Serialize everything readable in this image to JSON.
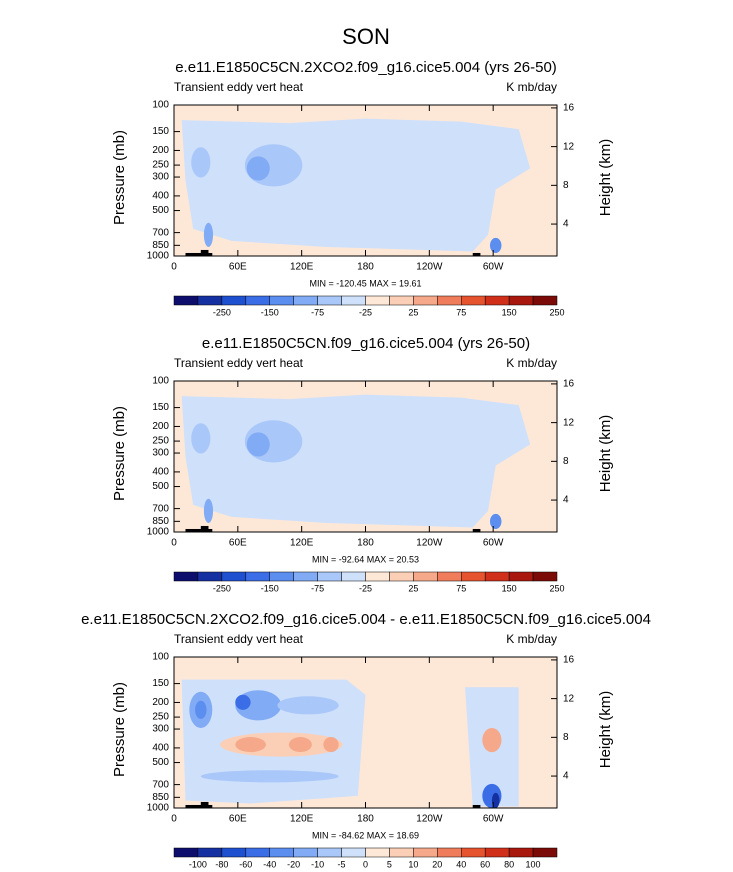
{
  "title": "SON",
  "panels": [
    {
      "type": "contour",
      "title": "e.e11.E1850C5CN.2XCO2.f09_g16.cice5.004 (yrs 26-50)",
      "left_label": "Transient eddy vert heat",
      "right_label": "K mb/day",
      "y_label": "Pressure (mb)",
      "y2_label": "Height (km)",
      "log_y": true,
      "ylim": [
        1000,
        100
      ],
      "yticks": [
        100,
        150,
        200,
        250,
        300,
        400,
        500,
        700,
        850,
        1000
      ],
      "y2lim": [
        0.7,
        16.3
      ],
      "y2ticks": [
        4,
        8,
        12,
        16
      ],
      "xlim": [
        0,
        360
      ],
      "xticks": [
        0,
        {
          "value": 60,
          "label": "60E"
        },
        {
          "value": 120,
          "label": "120E"
        },
        180,
        {
          "value": 240,
          "label": "120W"
        },
        {
          "value": 300,
          "label": "60W"
        }
      ],
      "stats": "MIN = -120.45  MAX = 19.61",
      "colorbar": {
        "colors": [
          "#0d0d6e",
          "#1530a0",
          "#1f50d0",
          "#3a6de6",
          "#5c8ef0",
          "#82abf5",
          "#a9c7f8",
          "#cfe0fb",
          "#fde8d8",
          "#fbcfb6",
          "#f6a98a",
          "#ef7d5c",
          "#e5532f",
          "#d0301a",
          "#a8180e",
          "#7a0b06"
        ],
        "labels": [
          -250,
          -150,
          -75,
          -25,
          25,
          75,
          150,
          250
        ],
        "label_every": 2
      }
    },
    {
      "type": "contour",
      "title": "e.e11.E1850C5CN.f09_g16.cice5.004 (yrs 26-50)",
      "left_label": "Transient eddy vert heat",
      "right_label": "K mb/day",
      "y_label": "Pressure (mb)",
      "y2_label": "Height (km)",
      "log_y": true,
      "ylim": [
        1000,
        100
      ],
      "yticks": [
        100,
        150,
        200,
        250,
        300,
        400,
        500,
        700,
        850,
        1000
      ],
      "y2lim": [
        0.7,
        16.3
      ],
      "y2ticks": [
        4,
        8,
        12,
        16
      ],
      "xlim": [
        0,
        360
      ],
      "xticks": [
        0,
        {
          "value": 60,
          "label": "60E"
        },
        {
          "value": 120,
          "label": "120E"
        },
        180,
        {
          "value": 240,
          "label": "120W"
        },
        {
          "value": 300,
          "label": "60W"
        }
      ],
      "stats": "MIN = -92.64  MAX = 20.53",
      "colorbar": {
        "colors": [
          "#0d0d6e",
          "#1530a0",
          "#1f50d0",
          "#3a6de6",
          "#5c8ef0",
          "#82abf5",
          "#a9c7f8",
          "#cfe0fb",
          "#fde8d8",
          "#fbcfb6",
          "#f6a98a",
          "#ef7d5c",
          "#e5532f",
          "#d0301a",
          "#a8180e",
          "#7a0b06"
        ],
        "labels": [
          -250,
          -150,
          -75,
          -25,
          25,
          75,
          150,
          250
        ],
        "label_every": 2
      }
    },
    {
      "type": "contour",
      "title": "e.e11.E1850C5CN.2XCO2.f09_g16.cice5.004 - e.e11.E1850C5CN.f09_g16.cice5.004",
      "left_label": "Transient eddy vert heat",
      "right_label": "K mb/day",
      "y_label": "Pressure (mb)",
      "y2_label": "Height (km)",
      "log_y": true,
      "ylim": [
        1000,
        100
      ],
      "yticks": [
        100,
        150,
        200,
        250,
        300,
        400,
        500,
        700,
        850,
        1000
      ],
      "y2lim": [
        0.7,
        16.3
      ],
      "y2ticks": [
        4,
        8,
        12,
        16
      ],
      "xlim": [
        0,
        360
      ],
      "xticks": [
        0,
        {
          "value": 60,
          "label": "60E"
        },
        {
          "value": 120,
          "label": "120E"
        },
        180,
        {
          "value": 240,
          "label": "120W"
        },
        {
          "value": 300,
          "label": "60W"
        }
      ],
      "stats": "MIN = -84.62  MAX = 18.69",
      "colorbar": {
        "colors": [
          "#0d0d6e",
          "#1530a0",
          "#1f50d0",
          "#3a6de6",
          "#5c8ef0",
          "#82abf5",
          "#a9c7f8",
          "#cfe0fb",
          "#fde8d8",
          "#fbcfb6",
          "#f6a98a",
          "#ef7d5c",
          "#e5532f",
          "#d0301a",
          "#a8180e",
          "#7a0b06"
        ],
        "labels": [
          -100,
          -80,
          -60,
          -40,
          -20,
          -10,
          -5,
          0,
          5,
          10,
          20,
          40,
          60,
          80,
          100
        ],
        "label_every": 1
      }
    }
  ]
}
